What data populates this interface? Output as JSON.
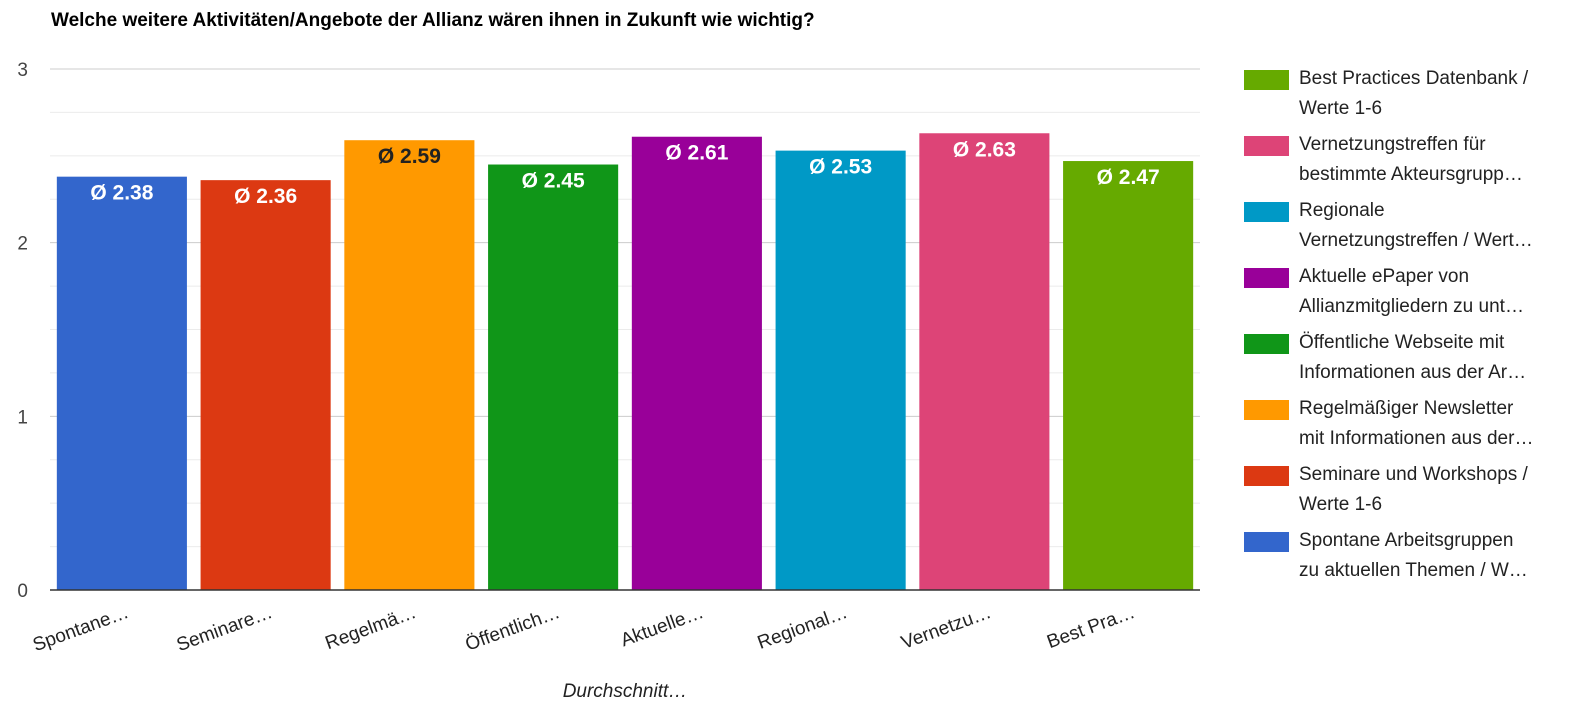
{
  "chart_data": {
    "type": "bar",
    "title": "Welche weitere Aktivitäten/Angebote der Allianz wären ihnen in Zukunft wie wichtig?",
    "xlabel": "Durchschnitt…",
    "ylabel": "",
    "ylim": [
      0,
      3
    ],
    "yticks": [
      0,
      1,
      2,
      3
    ],
    "grid": true,
    "legend_position": "right",
    "categories": [
      "Spontane…",
      "Seminare…",
      "Regelmä…",
      "Öffentlich…",
      "Aktuelle…",
      "Regional…",
      "Vernetzu…",
      "Best Pra…"
    ],
    "values": [
      2.38,
      2.36,
      2.59,
      2.45,
      2.61,
      2.53,
      2.63,
      2.47
    ],
    "value_labels": [
      "Ø 2.38",
      "Ø 2.36",
      "Ø 2.59",
      "Ø 2.45",
      "Ø 2.61",
      "Ø 2.53",
      "Ø 2.63",
      "Ø 2.47"
    ],
    "colors": [
      "#3366cc",
      "#dc3912",
      "#ff9900",
      "#109618",
      "#990099",
      "#0099c6",
      "#dd4477",
      "#66aa00"
    ],
    "label_colors": [
      "#ffffff",
      "#ffffff",
      "#222222",
      "#ffffff",
      "#ffffff",
      "#ffffff",
      "#ffffff",
      "#ffffff"
    ],
    "legend": [
      {
        "line1": "Best Practices Datenbank /",
        "line2": "Werte 1-6",
        "color": "#66aa00"
      },
      {
        "line1": "Vernetzungstreffen für",
        "line2": "bestimmte Akteursgrupp…",
        "color": "#dd4477"
      },
      {
        "line1": "Regionale",
        "line2": "Vernetzungstreffen / Wert…",
        "color": "#0099c6"
      },
      {
        "line1": "Aktuelle ePaper von",
        "line2": "Allianzmitgliedern zu unt…",
        "color": "#990099"
      },
      {
        "line1": "Öffentliche Webseite mit",
        "line2": "Informationen aus der Ar…",
        "color": "#109618"
      },
      {
        "line1": "Regelmäßiger Newsletter",
        "line2": "mit Informationen aus der…",
        "color": "#ff9900"
      },
      {
        "line1": "Seminare und Workshops /",
        "line2": "Werte 1-6",
        "color": "#dc3912"
      },
      {
        "line1": "Spontane Arbeitsgruppen",
        "line2": "zu aktuellen Themen / W…",
        "color": "#3366cc"
      }
    ]
  }
}
